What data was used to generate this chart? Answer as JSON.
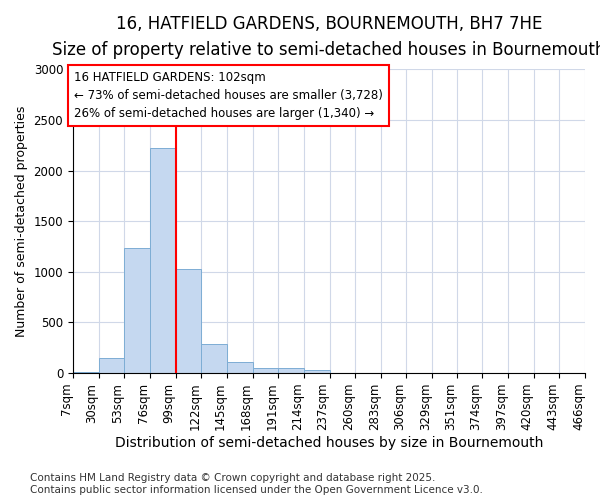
{
  "title": "16, HATFIELD GARDENS, BOURNEMOUTH, BH7 7HE",
  "subtitle": "Size of property relative to semi-detached houses in Bournemouth",
  "xlabel": "Distribution of semi-detached houses by size in Bournemouth",
  "ylabel": "Number of semi-detached properties",
  "bar_color": "#c5d8f0",
  "bar_edge_color": "#7dadd4",
  "vline_color": "red",
  "vline_x": 99,
  "annotation_text": "16 HATFIELD GARDENS: 102sqm\n← 73% of semi-detached houses are smaller (3,728)\n26% of semi-detached houses are larger (1,340) →",
  "annotation_box_color": "white",
  "annotation_box_edge_color": "red",
  "bins": [
    7,
    30,
    53,
    76,
    99,
    122,
    145,
    168,
    191,
    214,
    237,
    260,
    283,
    306,
    329,
    351,
    374,
    397,
    420,
    443,
    466
  ],
  "counts": [
    15,
    150,
    1240,
    2220,
    1030,
    285,
    110,
    55,
    50,
    30,
    5,
    0,
    0,
    0,
    0,
    0,
    0,
    0,
    0,
    0
  ],
  "ylim": [
    0,
    3000
  ],
  "yticks": [
    0,
    500,
    1000,
    1500,
    2000,
    2500,
    3000
  ],
  "background_color": "#ffffff",
  "plot_bg_color": "#ffffff",
  "grid_color": "#d0d8e8",
  "footer": "Contains HM Land Registry data © Crown copyright and database right 2025.\nContains public sector information licensed under the Open Government Licence v3.0.",
  "title_fontsize": 12,
  "subtitle_fontsize": 10,
  "xlabel_fontsize": 10,
  "ylabel_fontsize": 9,
  "tick_fontsize": 8.5,
  "annotation_fontsize": 8.5,
  "footer_fontsize": 7.5
}
